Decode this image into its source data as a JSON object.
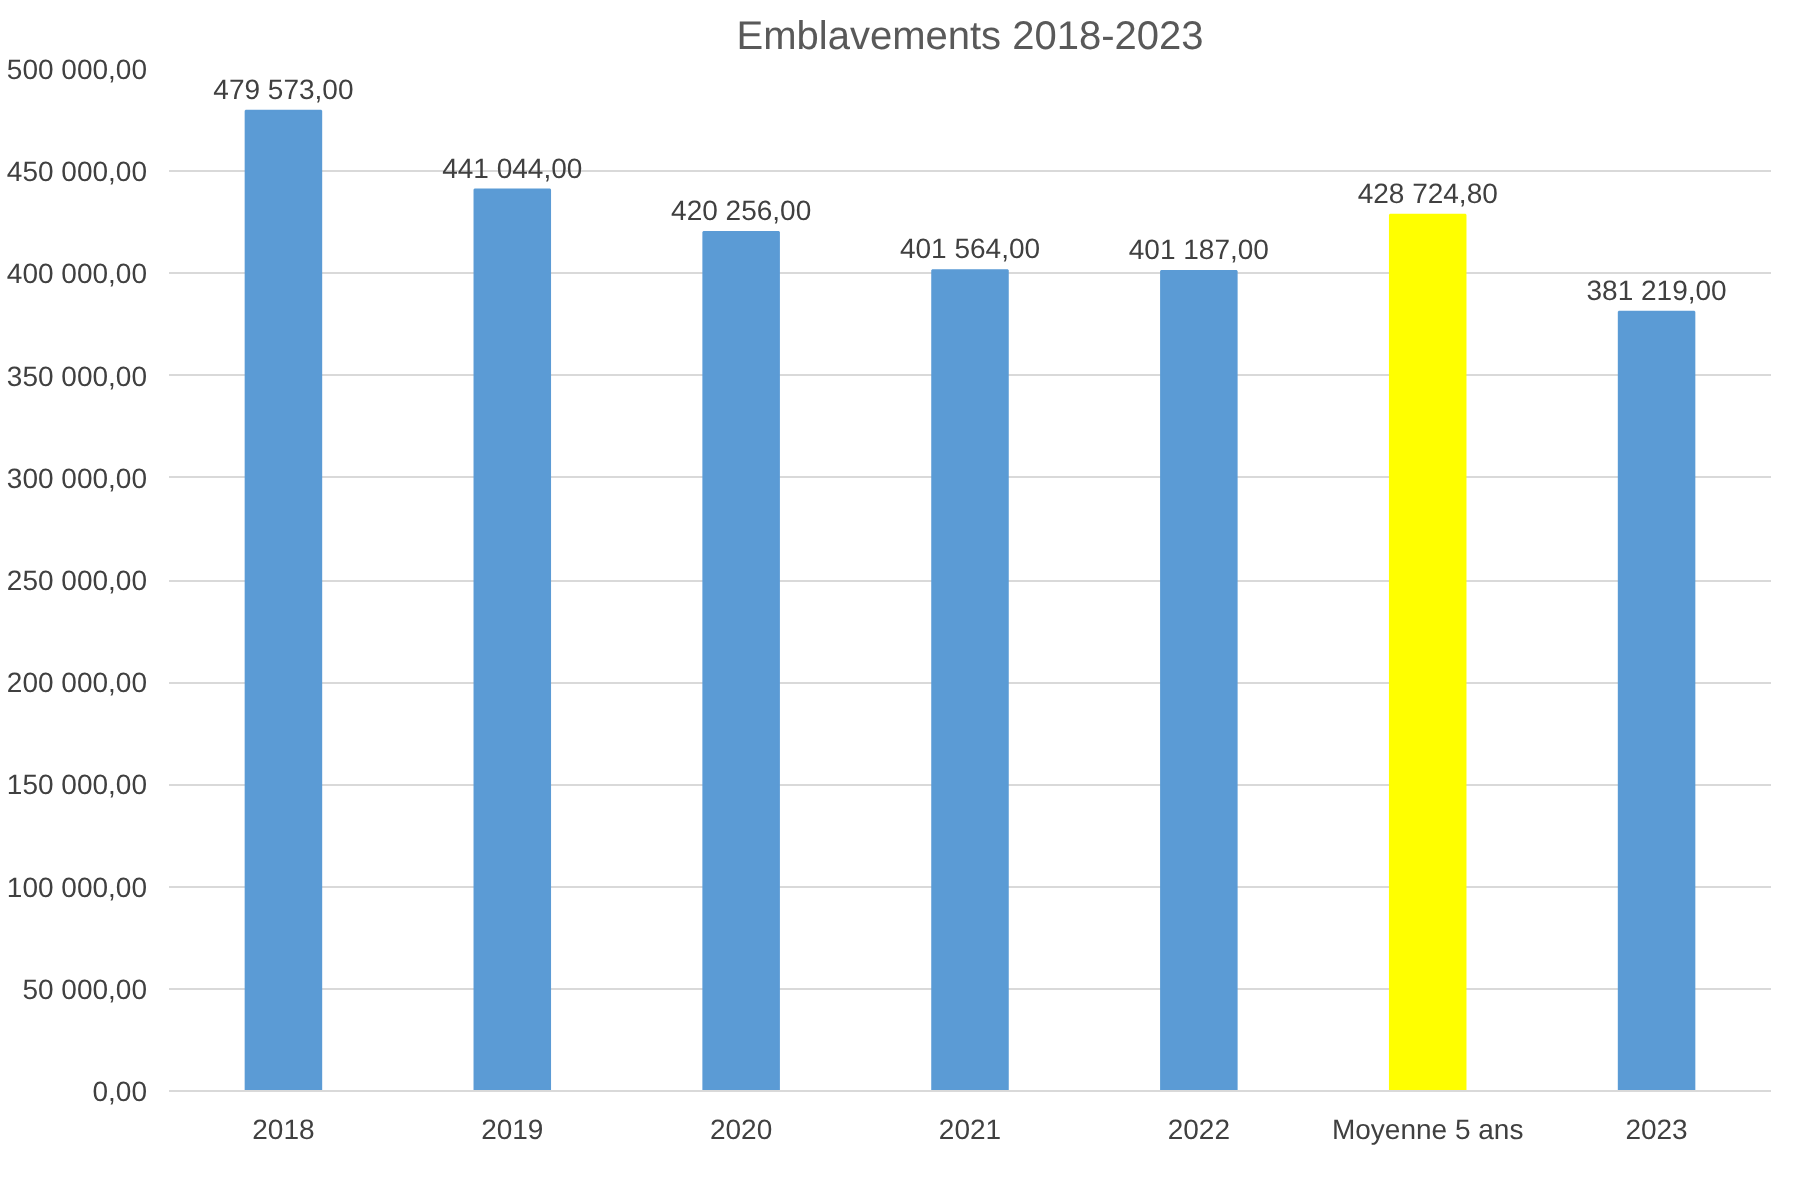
{
  "chart_data": {
    "type": "bar",
    "title": "Emblavements 2018-2023",
    "categories": [
      "2018",
      "2019",
      "2020",
      "2021",
      "2022",
      "Moyenne 5 ans",
      "2023"
    ],
    "values": [
      479573,
      441044,
      420256,
      401564,
      401187,
      428724.8,
      381219
    ],
    "colors": [
      "#5b9bd5",
      "#5b9bd5",
      "#5b9bd5",
      "#5b9bd5",
      "#5b9bd5",
      "#ffff00",
      "#5b9bd5"
    ],
    "value_labels": [
      "479 573,00",
      "441 044,00",
      "420 256,00",
      "401 564,00",
      "401 187,00",
      "428 724,80",
      "381 219,00"
    ],
    "ylim": [
      0,
      500000
    ],
    "yticks": [
      {
        "value": 0,
        "label": "0,00"
      },
      {
        "value": 50000,
        "label": "50 000,00"
      },
      {
        "value": 100000,
        "label": "100 000,00"
      },
      {
        "value": 150000,
        "label": "150 000,00"
      },
      {
        "value": 200000,
        "label": "200 000,00"
      },
      {
        "value": 250000,
        "label": "250 000,00"
      },
      {
        "value": 300000,
        "label": "300 000,00"
      },
      {
        "value": 350000,
        "label": "350 000,00"
      },
      {
        "value": 400000,
        "label": "400 000,00"
      },
      {
        "value": 450000,
        "label": "450 000,00"
      },
      {
        "value": 500000,
        "label": "500 000,00"
      }
    ],
    "grid": "y"
  }
}
